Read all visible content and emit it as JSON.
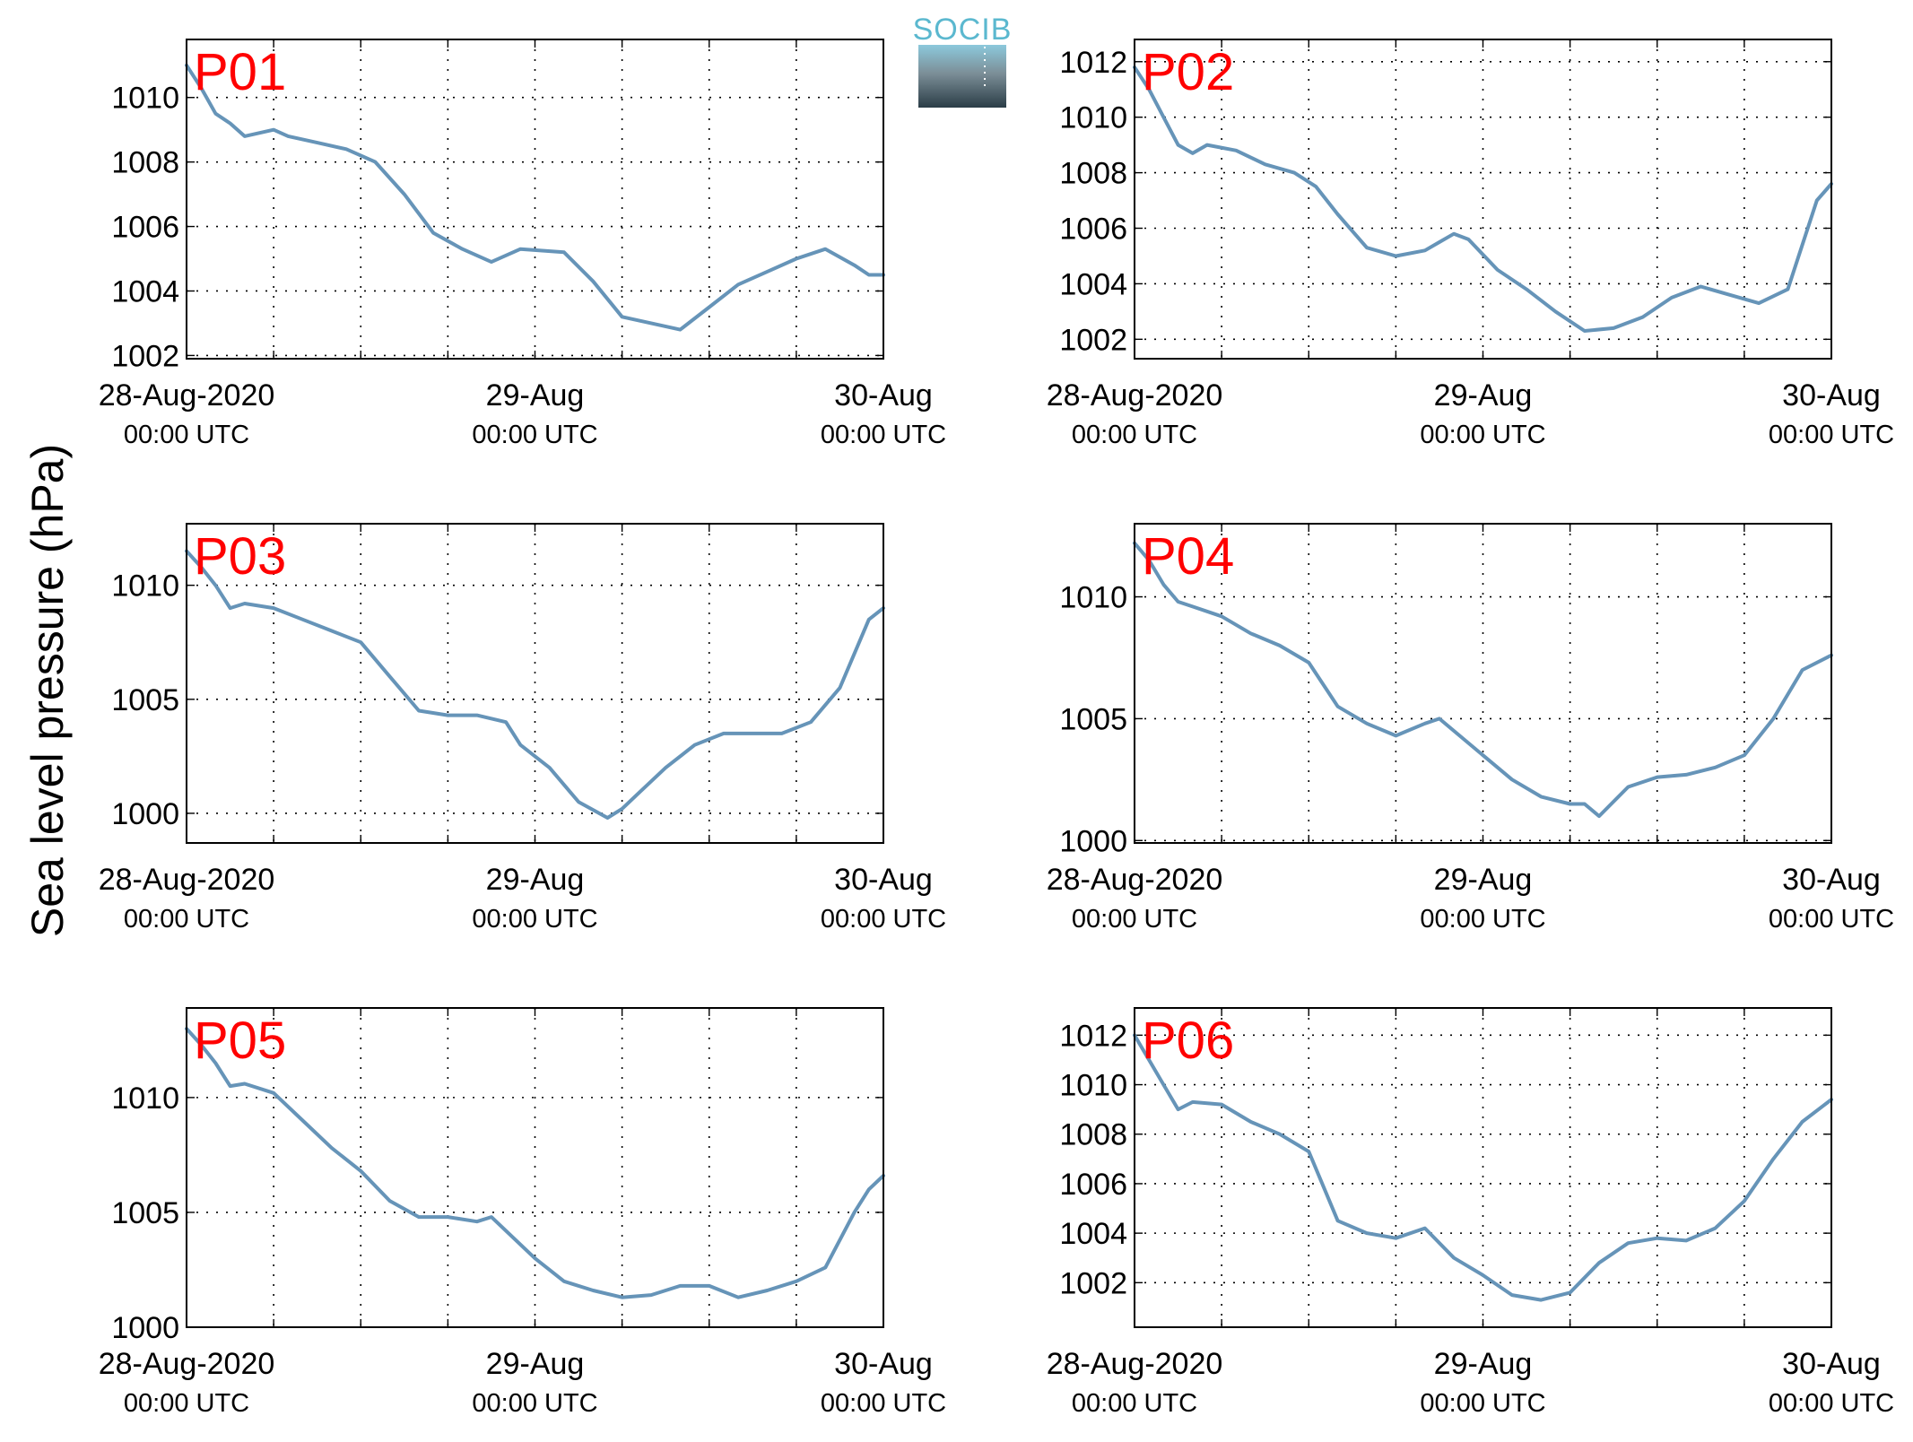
{
  "colors": {
    "series": "#6694b8",
    "panel_label": "#ff0000",
    "grid": "#000000",
    "logo_text": "#5bb8cf"
  },
  "logo": {
    "text": "SOCIB"
  },
  "figure": {
    "ylabel": "Sea level pressure (hPa)"
  },
  "chart_data": [
    {
      "type": "line",
      "name": "P01",
      "grid": true,
      "xlim": [
        "2020-08-28T00:00",
        "2020-08-30T00:00"
      ],
      "x_ticks": [
        {
          "at": "2020-08-28T00:00",
          "date": "28-Aug-2020",
          "time": "00:00 UTC"
        },
        {
          "at": "2020-08-29T00:00",
          "date": "29-Aug",
          "time": "00:00 UTC"
        },
        {
          "at": "2020-08-30T00:00",
          "date": "30-Aug",
          "time": "00:00 UTC"
        }
      ],
      "ylim": [
        1001.9,
        1011.8
      ],
      "y_ticks": [
        1002,
        1004,
        1006,
        1008,
        1010
      ],
      "x": [
        "2020-08-28T00:00",
        "2020-08-28T01:00",
        "2020-08-28T02:00",
        "2020-08-28T03:00",
        "2020-08-28T04:00",
        "2020-08-28T06:00",
        "2020-08-28T07:00",
        "2020-08-28T09:00",
        "2020-08-28T11:00",
        "2020-08-28T13:00",
        "2020-08-28T15:00",
        "2020-08-28T17:00",
        "2020-08-28T19:00",
        "2020-08-28T21:00",
        "2020-08-28T23:00",
        "2020-08-29T02:00",
        "2020-08-29T04:00",
        "2020-08-29T06:00",
        "2020-08-29T08:00",
        "2020-08-29T10:00",
        "2020-08-29T12:00",
        "2020-08-29T14:00",
        "2020-08-29T16:00",
        "2020-08-29T18:00",
        "2020-08-29T20:00",
        "2020-08-29T22:00",
        "2020-08-29T23:00",
        "2020-08-30T00:00"
      ],
      "y": [
        1011.0,
        1010.3,
        1009.5,
        1009.2,
        1008.8,
        1009.0,
        1008.8,
        1008.6,
        1008.4,
        1008.0,
        1007.0,
        1005.8,
        1005.3,
        1004.9,
        1005.3,
        1005.2,
        1004.3,
        1003.2,
        1003.0,
        1002.8,
        1003.5,
        1004.2,
        1004.6,
        1005.0,
        1005.3,
        1004.8,
        1004.5,
        1004.5
      ]
    },
    {
      "type": "line",
      "name": "P02",
      "grid": true,
      "xlim": [
        "2020-08-28T00:00",
        "2020-08-30T00:00"
      ],
      "x_ticks": [
        {
          "at": "2020-08-28T00:00",
          "date": "28-Aug-2020",
          "time": "00:00 UTC"
        },
        {
          "at": "2020-08-29T00:00",
          "date": "29-Aug",
          "time": "00:00 UTC"
        },
        {
          "at": "2020-08-30T00:00",
          "date": "30-Aug",
          "time": "00:00 UTC"
        }
      ],
      "ylim": [
        1001.3,
        1012.8
      ],
      "y_ticks": [
        1002,
        1004,
        1006,
        1008,
        1010,
        1012
      ],
      "x": [
        "2020-08-28T00:00",
        "2020-08-28T01:00",
        "2020-08-28T02:00",
        "2020-08-28T03:00",
        "2020-08-28T04:00",
        "2020-08-28T05:00",
        "2020-08-28T07:00",
        "2020-08-28T09:00",
        "2020-08-28T11:00",
        "2020-08-28T12:30",
        "2020-08-28T14:00",
        "2020-08-28T16:00",
        "2020-08-28T18:00",
        "2020-08-28T20:00",
        "2020-08-28T21:00",
        "2020-08-28T22:00",
        "2020-08-28T23:00",
        "2020-08-29T01:00",
        "2020-08-29T03:00",
        "2020-08-29T05:00",
        "2020-08-29T07:00",
        "2020-08-29T09:00",
        "2020-08-29T11:00",
        "2020-08-29T13:00",
        "2020-08-29T15:00",
        "2020-08-29T17:00",
        "2020-08-29T19:00",
        "2020-08-29T21:00",
        "2020-08-29T23:00",
        "2020-08-30T00:00"
      ],
      "y": [
        1011.8,
        1011.0,
        1010.0,
        1009.0,
        1008.7,
        1009.0,
        1008.8,
        1008.3,
        1008.0,
        1007.5,
        1006.5,
        1005.3,
        1005.0,
        1005.2,
        1005.5,
        1005.8,
        1005.6,
        1004.5,
        1003.8,
        1003.0,
        1002.3,
        1002.4,
        1002.8,
        1003.5,
        1003.9,
        1003.6,
        1003.3,
        1003.8,
        1007.0,
        1007.6
      ]
    },
    {
      "type": "line",
      "name": "P03",
      "grid": true,
      "xlim": [
        "2020-08-28T00:00",
        "2020-08-30T00:00"
      ],
      "x_ticks": [
        {
          "at": "2020-08-28T00:00",
          "date": "28-Aug-2020",
          "time": "00:00 UTC"
        },
        {
          "at": "2020-08-29T00:00",
          "date": "29-Aug",
          "time": "00:00 UTC"
        },
        {
          "at": "2020-08-30T00:00",
          "date": "30-Aug",
          "time": "00:00 UTC"
        }
      ],
      "ylim": [
        998.7,
        1012.7
      ],
      "y_ticks": [
        1000,
        1005,
        1010
      ],
      "x": [
        "2020-08-28T00:00",
        "2020-08-28T01:00",
        "2020-08-28T02:00",
        "2020-08-28T03:00",
        "2020-08-28T04:00",
        "2020-08-28T06:00",
        "2020-08-28T08:00",
        "2020-08-28T10:00",
        "2020-08-28T12:00",
        "2020-08-28T14:00",
        "2020-08-28T16:00",
        "2020-08-28T18:00",
        "2020-08-28T20:00",
        "2020-08-28T22:00",
        "2020-08-28T23:00",
        "2020-08-29T01:00",
        "2020-08-29T03:00",
        "2020-08-29T05:00",
        "2020-08-29T06:00",
        "2020-08-29T07:00",
        "2020-08-29T09:00",
        "2020-08-29T11:00",
        "2020-08-29T13:00",
        "2020-08-29T15:00",
        "2020-08-29T17:00",
        "2020-08-29T19:00",
        "2020-08-29T21:00",
        "2020-08-29T23:00",
        "2020-08-30T00:00"
      ],
      "y": [
        1011.5,
        1010.8,
        1010.0,
        1009.0,
        1009.2,
        1009.0,
        1008.5,
        1008.0,
        1007.5,
        1006.0,
        1004.5,
        1004.3,
        1004.3,
        1004.0,
        1003.0,
        1002.0,
        1000.5,
        999.8,
        1000.2,
        1000.8,
        1002.0,
        1003.0,
        1003.5,
        1003.5,
        1003.5,
        1004.0,
        1005.5,
        1008.5,
        1009.0
      ]
    },
    {
      "type": "line",
      "name": "P04",
      "grid": true,
      "xlim": [
        "2020-08-28T00:00",
        "2020-08-30T00:00"
      ],
      "x_ticks": [
        {
          "at": "2020-08-28T00:00",
          "date": "28-Aug-2020",
          "time": "00:00 UTC"
        },
        {
          "at": "2020-08-29T00:00",
          "date": "29-Aug",
          "time": "00:00 UTC"
        },
        {
          "at": "2020-08-30T00:00",
          "date": "30-Aug",
          "time": "00:00 UTC"
        }
      ],
      "ylim": [
        999.9,
        1013.0
      ],
      "y_ticks": [
        1000,
        1005,
        1010
      ],
      "x": [
        "2020-08-28T00:00",
        "2020-08-28T01:00",
        "2020-08-28T02:00",
        "2020-08-28T03:00",
        "2020-08-28T04:00",
        "2020-08-28T06:00",
        "2020-08-28T08:00",
        "2020-08-28T10:00",
        "2020-08-28T12:00",
        "2020-08-28T14:00",
        "2020-08-28T16:00",
        "2020-08-28T18:00",
        "2020-08-28T20:00",
        "2020-08-28T21:00",
        "2020-08-28T22:00",
        "2020-08-29T00:00",
        "2020-08-29T02:00",
        "2020-08-29T04:00",
        "2020-08-29T06:00",
        "2020-08-29T07:00",
        "2020-08-29T08:00",
        "2020-08-29T10:00",
        "2020-08-29T12:00",
        "2020-08-29T14:00",
        "2020-08-29T16:00",
        "2020-08-29T18:00",
        "2020-08-29T20:00",
        "2020-08-29T22:00",
        "2020-08-30T00:00"
      ],
      "y": [
        1012.2,
        1011.5,
        1010.5,
        1009.8,
        1009.6,
        1009.2,
        1008.5,
        1008.0,
        1007.3,
        1005.5,
        1004.8,
        1004.3,
        1004.8,
        1005.0,
        1004.5,
        1003.5,
        1002.5,
        1001.8,
        1001.5,
        1001.5,
        1001.0,
        1002.2,
        1002.6,
        1002.7,
        1003.0,
        1003.5,
        1005.0,
        1007.0,
        1007.6
      ]
    },
    {
      "type": "line",
      "name": "P05",
      "grid": true,
      "xlim": [
        "2020-08-28T00:00",
        "2020-08-30T00:00"
      ],
      "x_ticks": [
        {
          "at": "2020-08-28T00:00",
          "date": "28-Aug-2020",
          "time": "00:00 UTC"
        },
        {
          "at": "2020-08-29T00:00",
          "date": "29-Aug",
          "time": "00:00 UTC"
        },
        {
          "at": "2020-08-30T00:00",
          "date": "30-Aug",
          "time": "00:00 UTC"
        }
      ],
      "ylim": [
        1000.0,
        1013.9
      ],
      "y_ticks": [
        1000,
        1005,
        1010
      ],
      "x": [
        "2020-08-28T00:00",
        "2020-08-28T01:00",
        "2020-08-28T02:00",
        "2020-08-28T03:00",
        "2020-08-28T04:00",
        "2020-08-28T06:00",
        "2020-08-28T08:00",
        "2020-08-28T10:00",
        "2020-08-28T12:00",
        "2020-08-28T14:00",
        "2020-08-28T16:00",
        "2020-08-28T18:00",
        "2020-08-28T20:00",
        "2020-08-28T21:00",
        "2020-08-29T00:00",
        "2020-08-29T02:00",
        "2020-08-29T04:00",
        "2020-08-29T06:00",
        "2020-08-29T08:00",
        "2020-08-29T10:00",
        "2020-08-29T12:00",
        "2020-08-29T14:00",
        "2020-08-29T16:00",
        "2020-08-29T18:00",
        "2020-08-29T20:00",
        "2020-08-29T22:00",
        "2020-08-29T23:00",
        "2020-08-30T00:00"
      ],
      "y": [
        1013.0,
        1012.3,
        1011.5,
        1010.5,
        1010.6,
        1010.2,
        1009.0,
        1007.8,
        1006.8,
        1005.5,
        1004.8,
        1004.8,
        1004.6,
        1004.8,
        1003.0,
        1002.0,
        1001.6,
        1001.3,
        1001.4,
        1001.8,
        1001.8,
        1001.3,
        1001.6,
        1002.0,
        1002.6,
        1005.0,
        1006.0,
        1006.6
      ]
    },
    {
      "type": "line",
      "name": "P06",
      "grid": true,
      "xlim": [
        "2020-08-28T00:00",
        "2020-08-30T00:00"
      ],
      "x_ticks": [
        {
          "at": "2020-08-28T00:00",
          "date": "28-Aug-2020",
          "time": "00:00 UTC"
        },
        {
          "at": "2020-08-29T00:00",
          "date": "29-Aug",
          "time": "00:00 UTC"
        },
        {
          "at": "2020-08-30T00:00",
          "date": "30-Aug",
          "time": "00:00 UTC"
        }
      ],
      "ylim": [
        1000.2,
        1013.1
      ],
      "y_ticks": [
        1002,
        1004,
        1006,
        1008,
        1010,
        1012
      ],
      "x": [
        "2020-08-28T00:00",
        "2020-08-28T01:00",
        "2020-08-28T02:00",
        "2020-08-28T03:00",
        "2020-08-28T04:00",
        "2020-08-28T06:00",
        "2020-08-28T08:00",
        "2020-08-28T10:00",
        "2020-08-28T12:00",
        "2020-08-28T14:00",
        "2020-08-28T16:00",
        "2020-08-28T18:00",
        "2020-08-28T20:00",
        "2020-08-28T22:00",
        "2020-08-29T00:00",
        "2020-08-29T02:00",
        "2020-08-29T04:00",
        "2020-08-29T06:00",
        "2020-08-29T08:00",
        "2020-08-29T10:00",
        "2020-08-29T12:00",
        "2020-08-29T14:00",
        "2020-08-29T16:00",
        "2020-08-29T18:00",
        "2020-08-29T20:00",
        "2020-08-29T22:00",
        "2020-08-30T00:00"
      ],
      "y": [
        1012.0,
        1011.0,
        1010.0,
        1009.0,
        1009.3,
        1009.2,
        1008.5,
        1008.0,
        1007.3,
        1004.5,
        1004.0,
        1003.8,
        1004.2,
        1003.0,
        1002.3,
        1001.5,
        1001.3,
        1001.6,
        1002.8,
        1003.6,
        1003.8,
        1003.7,
        1004.2,
        1005.3,
        1007.0,
        1008.5,
        1009.4
      ]
    }
  ]
}
